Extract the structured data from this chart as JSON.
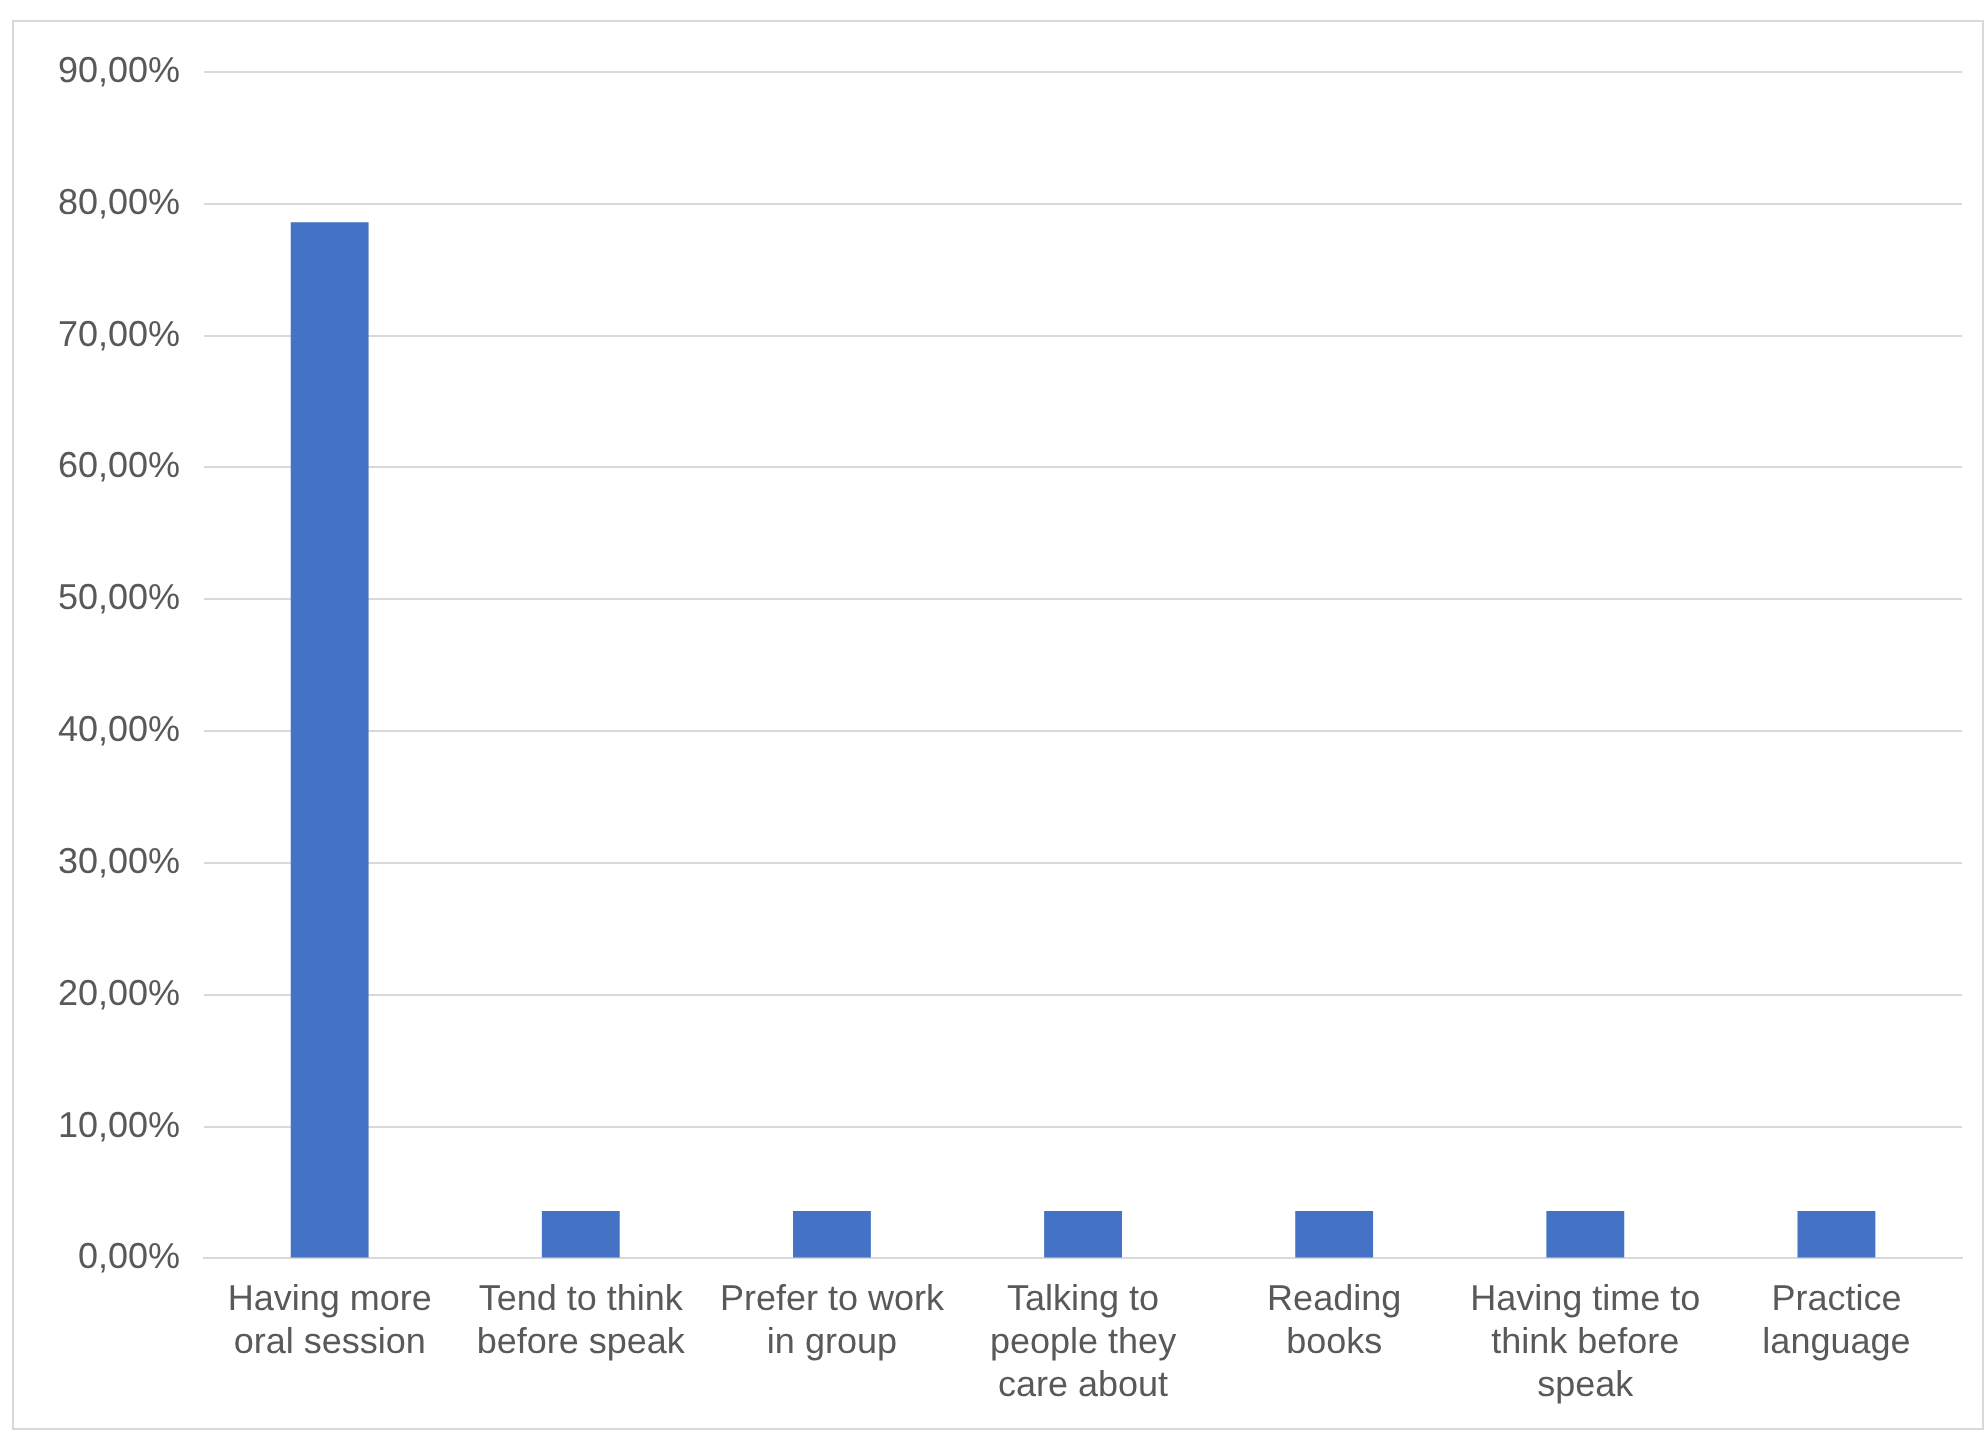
{
  "chart_data": {
    "type": "bar",
    "categories": [
      "Having more oral session",
      "Tend to think before speak",
      "Prefer to work in group",
      "Talking to people they care about",
      "Reading books",
      "Having time to think before speak",
      "Practice language"
    ],
    "values": [
      78.6,
      3.6,
      3.6,
      3.6,
      3.6,
      3.6,
      3.6
    ],
    "color": "#4472c4",
    "ylim": [
      0,
      90
    ],
    "yticks": [
      {
        "value": 0,
        "label": "0,00%"
      },
      {
        "value": 10,
        "label": "10,00%"
      },
      {
        "value": 20,
        "label": "20,00%"
      },
      {
        "value": 30,
        "label": "30,00%"
      },
      {
        "value": 40,
        "label": "40,00%"
      },
      {
        "value": 50,
        "label": "50,00%"
      },
      {
        "value": 60,
        "label": "60,00%"
      },
      {
        "value": 70,
        "label": "70,00%"
      },
      {
        "value": 80,
        "label": "80,00%"
      },
      {
        "value": 90,
        "label": "90,00%"
      }
    ],
    "grid": "y",
    "legend": false
  }
}
